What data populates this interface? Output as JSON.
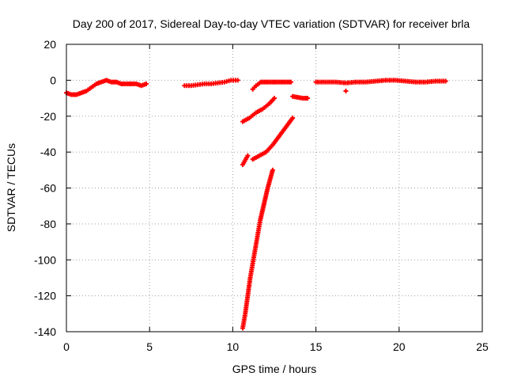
{
  "chart_data": {
    "type": "scatter",
    "title": "Day 200 of 2017, Sidereal Day-to-day VTEC variation (SDTVAR) for receiver brla",
    "xlabel": "GPS time / hours",
    "ylabel": "SDTVAR / TECUs",
    "xlim": [
      0,
      25
    ],
    "ylim": [
      -140,
      20
    ],
    "xticks": [
      0,
      5,
      10,
      15,
      20,
      25
    ],
    "yticks": [
      -140,
      -120,
      -100,
      -80,
      -60,
      -40,
      -20,
      0,
      20
    ],
    "grid": true,
    "marker": "plus",
    "series_color": "#ff0000",
    "segments": [
      {
        "x": [
          0.0,
          0.3,
          0.6,
          0.9,
          1.2,
          1.5,
          1.8,
          2.1,
          2.4,
          2.7,
          3.0,
          3.3,
          3.6,
          3.9,
          4.2,
          4.5,
          4.8
        ],
        "y": [
          -7,
          -8,
          -8,
          -7,
          -6,
          -4,
          -2,
          -1,
          0,
          -1,
          -1,
          -2,
          -2,
          -2,
          -2,
          -3,
          -2
        ]
      },
      {
        "x": [
          7.1,
          7.5,
          7.9,
          8.3,
          8.7,
          9.1,
          9.5,
          9.9,
          10.3
        ],
        "y": [
          -3,
          -3,
          -2.5,
          -2,
          -2,
          -1.5,
          -1,
          0,
          0
        ]
      },
      {
        "x": [
          11.2,
          11.4,
          11.7,
          12.0,
          12.3,
          12.6,
          12.9,
          13.2,
          13.5
        ],
        "y": [
          -5,
          -3,
          -1,
          -1,
          -1,
          -1,
          -1,
          -1,
          -1
        ]
      },
      {
        "x": [
          13.6,
          13.9,
          14.2,
          14.5
        ],
        "y": [
          -9,
          -9.5,
          -10,
          -10
        ]
      },
      {
        "x": [
          10.6,
          11.0,
          11.4,
          11.8,
          12.2,
          12.5
        ],
        "y": [
          -23,
          -21,
          -18,
          -16,
          -13,
          -10
        ]
      },
      {
        "x": [
          10.6,
          10.9
        ],
        "y": [
          -47,
          -42
        ]
      },
      {
        "x": [
          11.2,
          11.6,
          12.0,
          12.4,
          12.8,
          13.2,
          13.6
        ],
        "y": [
          -44,
          -42,
          -40,
          -36,
          -31,
          -26,
          -21
        ]
      },
      {
        "x": [
          10.6,
          10.75,
          10.9,
          11.05,
          11.2,
          11.35,
          11.5,
          11.65,
          11.8,
          11.95,
          12.1,
          12.25,
          12.4
        ],
        "y": [
          -138,
          -130,
          -120,
          -110,
          -102,
          -94,
          -86,
          -78,
          -72,
          -66,
          -60,
          -55,
          -50
        ]
      },
      {
        "x": [
          15.0,
          15.6,
          16.2,
          16.8,
          17.4,
          18.0,
          18.6,
          19.2,
          19.8,
          20.4,
          21.0,
          21.6,
          22.2,
          22.8
        ],
        "y": [
          -1,
          -1,
          -1,
          -1.5,
          -1,
          -1,
          -0.5,
          0,
          0,
          -0.5,
          -1,
          -1,
          -0.5,
          -0.5
        ]
      },
      {
        "x": [
          16.8
        ],
        "y": [
          -6
        ]
      }
    ]
  }
}
